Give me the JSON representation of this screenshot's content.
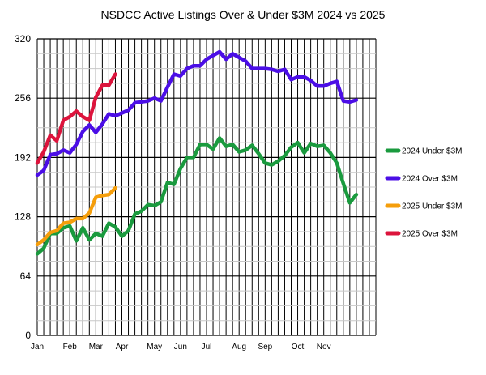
{
  "chart_data": {
    "type": "line",
    "title": "NSDCC Active Listings Over & Under $3M 2024 vs 2025",
    "xlabel": "",
    "ylabel": "",
    "ylim": [
      0,
      320
    ],
    "yticks": [
      0,
      64,
      128,
      192,
      256,
      320
    ],
    "x_week_count": 53,
    "month_ticks": [
      {
        "label": "Jan",
        "week": 0
      },
      {
        "label": "Feb",
        "week": 5
      },
      {
        "label": "Mar",
        "week": 9
      },
      {
        "label": "Apr",
        "week": 13
      },
      {
        "label": "May",
        "week": 18
      },
      {
        "label": "Jun",
        "week": 22
      },
      {
        "label": "Jul",
        "week": 26
      },
      {
        "label": "Aug",
        "week": 31
      },
      {
        "label": "Sep",
        "week": 35
      },
      {
        "label": "Oct",
        "week": 40
      },
      {
        "label": "Nov",
        "week": 44
      }
    ],
    "grid": true,
    "legend_position": "right",
    "series": [
      {
        "name": "2024 Under $3M",
        "color": "#1a9a3e",
        "values": [
          88,
          94,
          110,
          110,
          116,
          118,
          102,
          116,
          103,
          110,
          107,
          121,
          117,
          107,
          113,
          131,
          134,
          141,
          140,
          144,
          165,
          163,
          180,
          192,
          192,
          206,
          206,
          201,
          213,
          204,
          206,
          198,
          200,
          205,
          196,
          186,
          184,
          188,
          194,
          203,
          208,
          197,
          207,
          204,
          205,
          197,
          186,
          164,
          143,
          152
        ]
      },
      {
        "name": "2024 Over $3M",
        "color": "#4b0ee6",
        "values": [
          173,
          178,
          195,
          196,
          200,
          197,
          206,
          220,
          227,
          219,
          228,
          239,
          237,
          240,
          243,
          251,
          252,
          253,
          256,
          253,
          268,
          282,
          280,
          288,
          291,
          291,
          298,
          302,
          306,
          298,
          304,
          300,
          296,
          288,
          288,
          288,
          287,
          285,
          287,
          276,
          279,
          279,
          275,
          269,
          269,
          272,
          274,
          253,
          252,
          254
        ]
      },
      {
        "name": "2025 Under $3M",
        "color": "#f59e0b",
        "values": [
          98,
          103,
          111,
          113,
          121,
          122,
          126,
          126,
          132,
          149,
          151,
          152,
          159
        ]
      },
      {
        "name": "2025 Over $3M",
        "color": "#dc143c",
        "values": [
          186,
          198,
          216,
          210,
          232,
          236,
          242,
          236,
          232,
          257,
          270,
          270,
          282
        ]
      }
    ]
  }
}
